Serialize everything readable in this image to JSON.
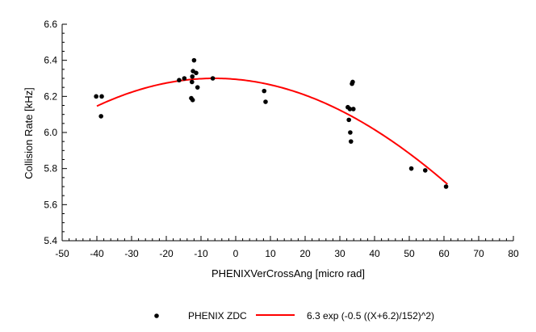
{
  "chart_data": {
    "type": "scatter",
    "title": "",
    "xlabel": "PHENIXVerCrossAng [micro rad]",
    "ylabel": "Collision Rate [kHz]",
    "xlim": [
      -50,
      80
    ],
    "ylim": [
      5.4,
      6.6
    ],
    "grid": false,
    "x_ticks": [
      -50,
      -40,
      -30,
      -20,
      -10,
      0,
      10,
      20,
      30,
      40,
      50,
      60,
      70,
      80
    ],
    "x_tick_labels": [
      "-50",
      "-40",
      "-30",
      "-20",
      "-10",
      "0",
      "10",
      "20",
      "30",
      "40",
      "50",
      "60",
      "70",
      "80"
    ],
    "y_ticks": [
      5.4,
      5.6,
      5.8,
      6.0,
      6.2,
      6.4,
      6.6
    ],
    "y_tick_labels": [
      "5.4",
      "5.6",
      "5.8",
      "6.0",
      "6.2",
      "6.4",
      "6.6"
    ],
    "legend_position": "bottom",
    "series": [
      {
        "name": "PHENIX ZDC",
        "kind": "points",
        "color": "#000000",
        "points": [
          {
            "x": -40.2,
            "y": 6.2
          },
          {
            "x": -38.6,
            "y": 6.2
          },
          {
            "x": -38.8,
            "y": 6.09
          },
          {
            "x": -16.3,
            "y": 6.29
          },
          {
            "x": -14.8,
            "y": 6.3
          },
          {
            "x": -12.8,
            "y": 6.19
          },
          {
            "x": -12.4,
            "y": 6.18
          },
          {
            "x": -12.6,
            "y": 6.28
          },
          {
            "x": -12.5,
            "y": 6.31
          },
          {
            "x": -12.3,
            "y": 6.34
          },
          {
            "x": -12.0,
            "y": 6.4
          },
          {
            "x": -11.4,
            "y": 6.33
          },
          {
            "x": -11.0,
            "y": 6.25
          },
          {
            "x": -6.6,
            "y": 6.3
          },
          {
            "x": 8.2,
            "y": 6.23
          },
          {
            "x": 8.6,
            "y": 6.17
          },
          {
            "x": 32.3,
            "y": 6.14
          },
          {
            "x": 32.6,
            "y": 6.07
          },
          {
            "x": 32.9,
            "y": 6.13
          },
          {
            "x": 33.0,
            "y": 6.0
          },
          {
            "x": 33.2,
            "y": 5.95
          },
          {
            "x": 33.5,
            "y": 6.27
          },
          {
            "x": 33.7,
            "y": 6.28
          },
          {
            "x": 33.9,
            "y": 6.13
          },
          {
            "x": 50.6,
            "y": 5.8
          },
          {
            "x": 54.6,
            "y": 5.79
          },
          {
            "x": 60.6,
            "y": 5.7
          }
        ]
      },
      {
        "name": "6.3 exp (-0.5 ((X+6.2)/152)^2)",
        "kind": "line",
        "color": "#ff0000",
        "formula": {
          "amplitude": 6.3,
          "mean": -6.2,
          "sigma": 152
        },
        "x_range": [
          -40,
          61
        ]
      }
    ]
  }
}
